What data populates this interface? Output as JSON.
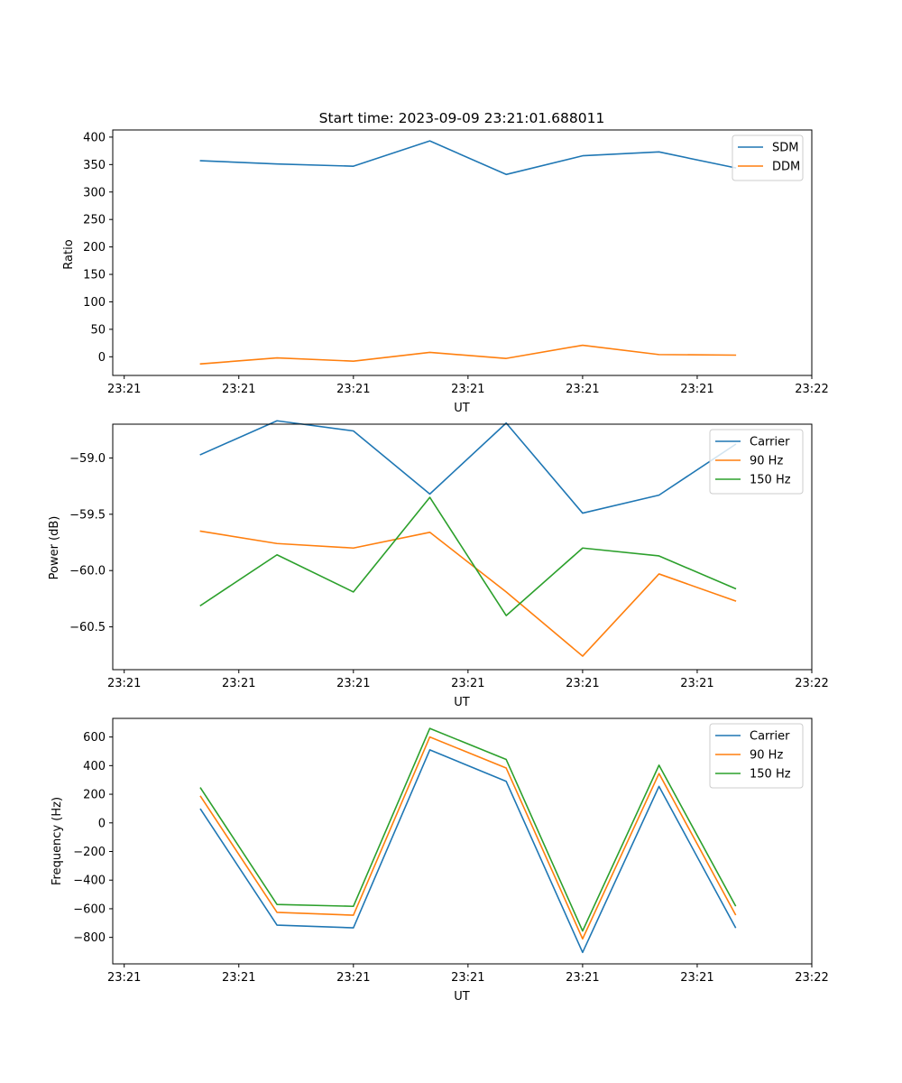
{
  "chart_data": [
    {
      "type": "line",
      "title": "Start time: 2023-09-09 23:21:01.688011",
      "xlabel": "UT",
      "ylabel": "Ratio",
      "x": [
        1,
        2,
        3,
        4,
        5,
        6,
        7,
        8
      ],
      "xlim": [
        -0.15,
        9.0
      ],
      "x_ticks": [
        0,
        1.5,
        3,
        4.5,
        6,
        7.5,
        9
      ],
      "x_tick_labels": [
        "23:21",
        "23:21",
        "23:21",
        "23:21",
        "23:21",
        "23:21",
        "23:22"
      ],
      "ylim": [
        -34,
        413
      ],
      "y_ticks": [
        0,
        50,
        100,
        150,
        200,
        250,
        300,
        350,
        400
      ],
      "y_tick_labels": [
        "0",
        "50",
        "100",
        "150",
        "200",
        "250",
        "300",
        "350",
        "400"
      ],
      "legend_position": "top-right",
      "series": [
        {
          "name": "SDM",
          "color": "#1f77b4",
          "values": [
            357,
            351,
            347,
            393,
            332,
            366,
            373,
            344
          ]
        },
        {
          "name": "DDM",
          "color": "#ff7f0e",
          "values": [
            -13,
            -2,
            -8,
            8,
            -3,
            21,
            4,
            3
          ]
        }
      ]
    },
    {
      "type": "line",
      "title": "",
      "xlabel": "UT",
      "ylabel": "Power (dB)",
      "x": [
        1,
        2,
        3,
        4,
        5,
        6,
        7,
        8
      ],
      "xlim": [
        -0.15,
        9.0
      ],
      "x_ticks": [
        0,
        1.5,
        3,
        4.5,
        6,
        7.5,
        9
      ],
      "x_tick_labels": [
        "23:21",
        "23:21",
        "23:21",
        "23:21",
        "23:21",
        "23:21",
        "23:22"
      ],
      "ylim": [
        -60.88,
        -58.7
      ],
      "y_ticks": [
        -59.0,
        -59.5,
        -60.0,
        -60.5
      ],
      "y_tick_labels": [
        "−59.0",
        "−59.5",
        "−60.0",
        "−60.5"
      ],
      "legend_position": "top-right",
      "series": [
        {
          "name": "Carrier",
          "color": "#1f77b4",
          "values": [
            -58.97,
            -58.67,
            -58.76,
            -59.32,
            -58.69,
            -59.49,
            -59.33,
            -58.88
          ]
        },
        {
          "name": "90 Hz",
          "color": "#ff7f0e",
          "values": [
            -59.65,
            -59.76,
            -59.8,
            -59.66,
            -60.19,
            -60.76,
            -60.03,
            -60.27
          ]
        },
        {
          "name": "150 Hz",
          "color": "#2ca02c",
          "values": [
            -60.31,
            -59.86,
            -60.19,
            -59.35,
            -60.4,
            -59.8,
            -59.87,
            -60.16
          ]
        }
      ]
    },
    {
      "type": "line",
      "title": "",
      "xlabel": "UT",
      "ylabel": "Frequency (Hz)",
      "x": [
        1,
        2,
        3,
        4,
        5,
        6,
        7,
        8
      ],
      "xlim": [
        -0.15,
        9.0
      ],
      "x_ticks": [
        0,
        1.5,
        3,
        4.5,
        6,
        7.5,
        9
      ],
      "x_tick_labels": [
        "23:21",
        "23:21",
        "23:21",
        "23:21",
        "23:21",
        "23:21",
        "23:22"
      ],
      "ylim": [
        -985,
        730
      ],
      "y_ticks": [
        600,
        400,
        200,
        0,
        -200,
        -400,
        -600,
        -800
      ],
      "y_tick_labels": [
        "600",
        "400",
        "200",
        "0",
        "−200",
        "−400",
        "−600",
        "−800"
      ],
      "legend_position": "top-right",
      "series": [
        {
          "name": "Carrier",
          "color": "#1f77b4",
          "values": [
            95,
            -714,
            -733,
            510,
            290,
            -905,
            255,
            -730
          ]
        },
        {
          "name": "90 Hz",
          "color": "#ff7f0e",
          "values": [
            185,
            -625,
            -645,
            600,
            383,
            -810,
            345,
            -640
          ]
        },
        {
          "name": "150 Hz",
          "color": "#2ca02c",
          "values": [
            243,
            -570,
            -583,
            660,
            443,
            -755,
            403,
            -578
          ]
        }
      ]
    }
  ]
}
